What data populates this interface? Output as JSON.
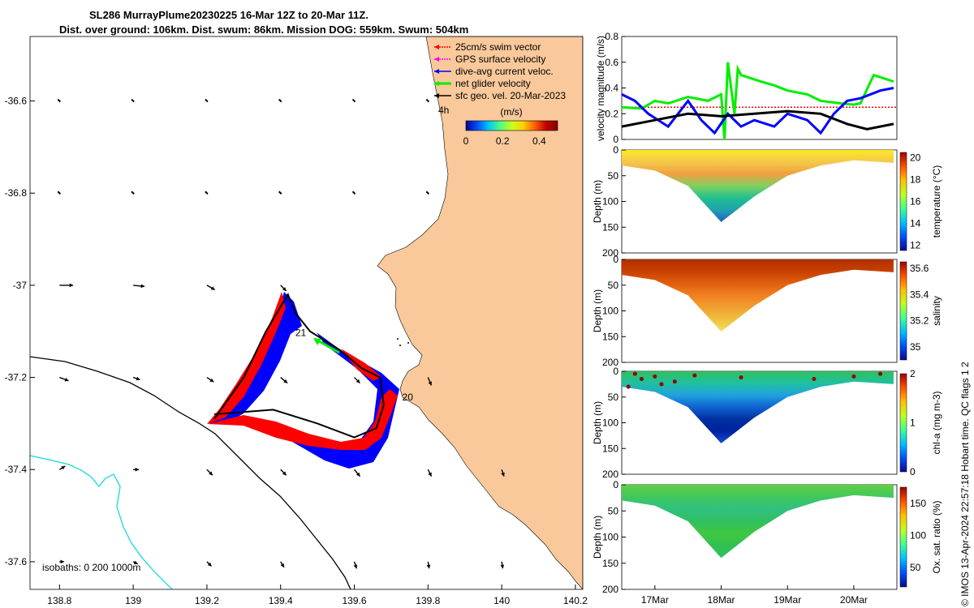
{
  "title": {
    "line1": "SL286 MurrayPlume20230225 16-Mar 12Z to 20-Mar 11Z.",
    "line2": "Dist. over ground: 106km. Dist. swum: 86km. Mission DOG: 559km. Swum: 504km"
  },
  "colors": {
    "land": "#f9c99b",
    "swim": "#ff0000",
    "gps": "#ff00ff",
    "dive": "#0000ff",
    "net": "#00ee00",
    "geo": "#000000",
    "river": "#33dddd"
  },
  "chart_data": [
    {
      "type": "map",
      "xticks": [
        "138.8",
        "139",
        "139.2",
        "139.4",
        "139.6",
        "139.8",
        "140",
        "140.2"
      ],
      "yticks": [
        "-36.6",
        "-36.8",
        "-37",
        "-37.2",
        "-37.4",
        "-37.6"
      ],
      "xlim": [
        138.72,
        140.22
      ],
      "ylim": [
        -37.66,
        -36.46
      ],
      "legend": [
        {
          "key": "swim",
          "label": "25cm/s swim vector"
        },
        {
          "key": "gps",
          "label": "GPS surface velocity"
        },
        {
          "key": "dive",
          "label": "dive-avg current veloc."
        },
        {
          "key": "net",
          "label": "net glider velocity"
        },
        {
          "key": "geo",
          "label": "sfc geo. vel. 20-Mar-2023"
        }
      ],
      "legend_extra": "4h",
      "colorbar": {
        "label": "(m/s)",
        "ticks": [
          "0",
          "0.2",
          "0.4"
        ],
        "range": [
          0,
          0.5
        ]
      },
      "annotations": [
        {
          "text": "21",
          "lon": 139.44,
          "lat": -37.11
        },
        {
          "text": "20",
          "lon": 139.73,
          "lat": -37.25
        }
      ],
      "isobath_label": "isobaths: 0   200  1000m",
      "track": [
        [
          139.22,
          -37.29
        ],
        [
          139.3,
          -37.2
        ],
        [
          139.36,
          -37.1
        ],
        [
          139.42,
          -37.02
        ],
        [
          139.44,
          -37.06
        ],
        [
          139.48,
          -37.1
        ],
        [
          139.56,
          -37.14
        ],
        [
          139.62,
          -37.18
        ],
        [
          139.67,
          -37.2
        ],
        [
          139.68,
          -37.26
        ],
        [
          139.66,
          -37.31
        ],
        [
          139.6,
          -37.33
        ],
        [
          139.5,
          -37.3
        ],
        [
          139.38,
          -37.27
        ],
        [
          139.22,
          -37.28
        ]
      ],
      "current_vectors": [
        {
          "lon": 138.8,
          "lat": -37.0,
          "u": 0.12,
          "v": 0.0
        },
        {
          "lon": 139.0,
          "lat": -37.0,
          "u": 0.1,
          "v": -0.01
        },
        {
          "lon": 139.2,
          "lat": -37.0,
          "u": 0.07,
          "v": -0.04
        },
        {
          "lon": 139.4,
          "lat": -37.0,
          "u": 0.05,
          "v": -0.05
        },
        {
          "lon": 138.8,
          "lat": -37.2,
          "u": 0.08,
          "v": -0.03
        },
        {
          "lon": 139.0,
          "lat": -37.2,
          "u": 0.06,
          "v": -0.02
        },
        {
          "lon": 139.2,
          "lat": -37.2,
          "u": 0.06,
          "v": -0.04
        },
        {
          "lon": 139.4,
          "lat": -37.2,
          "u": 0.06,
          "v": -0.05
        },
        {
          "lon": 139.6,
          "lat": -37.2,
          "u": 0.05,
          "v": -0.05
        },
        {
          "lon": 139.8,
          "lat": -37.2,
          "u": 0.03,
          "v": -0.07
        },
        {
          "lon": 138.8,
          "lat": -37.4,
          "u": 0.05,
          "v": 0.03
        },
        {
          "lon": 139.0,
          "lat": -37.4,
          "u": 0.05,
          "v": 0.0
        },
        {
          "lon": 139.2,
          "lat": -37.4,
          "u": 0.05,
          "v": -0.05
        },
        {
          "lon": 139.4,
          "lat": -37.4,
          "u": 0.05,
          "v": -0.05
        },
        {
          "lon": 139.6,
          "lat": -37.4,
          "u": 0.05,
          "v": -0.06
        },
        {
          "lon": 139.8,
          "lat": -37.4,
          "u": 0.03,
          "v": -0.06
        },
        {
          "lon": 140.0,
          "lat": -37.4,
          "u": 0.02,
          "v": -0.06
        },
        {
          "lon": 138.8,
          "lat": -37.6,
          "u": 0.04,
          "v": 0.0
        },
        {
          "lon": 139.0,
          "lat": -37.6,
          "u": 0.04,
          "v": -0.02
        },
        {
          "lon": 139.2,
          "lat": -37.6,
          "u": 0.04,
          "v": -0.04
        },
        {
          "lon": 139.4,
          "lat": -37.6,
          "u": 0.03,
          "v": -0.05
        },
        {
          "lon": 139.6,
          "lat": -37.6,
          "u": 0.02,
          "v": -0.06
        },
        {
          "lon": 139.8,
          "lat": -37.6,
          "u": 0.01,
          "v": -0.06
        },
        {
          "lon": 140.0,
          "lat": -37.6,
          "u": 0.01,
          "v": -0.06
        }
      ]
    },
    {
      "type": "line",
      "ylabel": "velocity magnitude (m/s)",
      "yticks": [
        "0",
        "0.2",
        "0.4",
        "0.6",
        "0.8"
      ],
      "ylim": [
        0,
        0.8
      ],
      "xlim": [
        16.5,
        20.65
      ],
      "series": [
        {
          "name": "swim",
          "color": "#ff0000",
          "x": [
            16.5,
            20.65
          ],
          "y": [
            0.25,
            0.25
          ]
        },
        {
          "name": "net",
          "color": "#00ee00",
          "x": [
            16.5,
            16.8,
            17.0,
            17.2,
            17.5,
            17.8,
            18.0,
            18.05,
            18.1,
            18.2,
            18.25,
            18.3,
            18.6,
            18.8,
            19.0,
            19.3,
            19.5,
            19.8,
            20.0,
            20.1,
            20.3,
            20.6
          ],
          "y": [
            0.25,
            0.24,
            0.3,
            0.28,
            0.33,
            0.3,
            0.35,
            0.0,
            0.6,
            0.2,
            0.55,
            0.5,
            0.45,
            0.42,
            0.38,
            0.35,
            0.3,
            0.28,
            0.27,
            0.28,
            0.5,
            0.45
          ]
        },
        {
          "name": "dive",
          "color": "#0000ff",
          "x": [
            16.5,
            16.7,
            16.9,
            17.2,
            17.5,
            17.7,
            17.9,
            18.1,
            18.3,
            18.5,
            18.8,
            19.0,
            19.3,
            19.5,
            19.7,
            19.9,
            20.1,
            20.4,
            20.6
          ],
          "y": [
            0.35,
            0.3,
            0.2,
            0.1,
            0.3,
            0.15,
            0.05,
            0.2,
            0.1,
            0.15,
            0.1,
            0.2,
            0.15,
            0.05,
            0.2,
            0.3,
            0.32,
            0.38,
            0.4
          ]
        },
        {
          "name": "geo",
          "color": "#000000",
          "x": [
            16.5,
            17.0,
            17.5,
            18.0,
            18.5,
            19.0,
            19.5,
            19.9,
            20.2,
            20.6
          ],
          "y": [
            0.1,
            0.15,
            0.2,
            0.18,
            0.2,
            0.22,
            0.2,
            0.12,
            0.08,
            0.12
          ]
        }
      ]
    },
    {
      "type": "heatmap",
      "ylabel": "Depth (m)",
      "cbar_label": "temperature (°C)",
      "yticks": [
        "0",
        "50",
        "100",
        "150",
        "200"
      ],
      "ylim": [
        200,
        0
      ],
      "cbar_ticks": [
        "12",
        "14",
        "16",
        "18",
        "20"
      ],
      "clim": [
        11.5,
        20.5
      ],
      "depth_profile": [
        [
          16.5,
          30
        ],
        [
          17.0,
          40
        ],
        [
          17.5,
          70
        ],
        [
          18.0,
          140
        ],
        [
          18.5,
          90
        ],
        [
          19.0,
          50
        ],
        [
          19.5,
          30
        ],
        [
          20.0,
          20
        ],
        [
          20.6,
          25
        ]
      ]
    },
    {
      "type": "heatmap",
      "ylabel": "Depth (m)",
      "cbar_label": "salinity",
      "yticks": [
        "0",
        "50",
        "100",
        "150",
        "200"
      ],
      "ylim": [
        200,
        0
      ],
      "cbar_ticks": [
        "35",
        "35.2",
        "35.4",
        "35.6"
      ],
      "clim": [
        34.9,
        35.65
      ],
      "depth_profile": [
        [
          16.5,
          30
        ],
        [
          17.0,
          40
        ],
        [
          17.5,
          70
        ],
        [
          18.0,
          140
        ],
        [
          18.5,
          90
        ],
        [
          19.0,
          50
        ],
        [
          19.5,
          30
        ],
        [
          20.0,
          20
        ],
        [
          20.6,
          25
        ]
      ]
    },
    {
      "type": "heatmap",
      "ylabel": "Depth (m)",
      "cbar_label": "chl-a (mg m-3)",
      "yticks": [
        "0",
        "50",
        "100",
        "150",
        "200"
      ],
      "ylim": [
        200,
        0
      ],
      "cbar_ticks": [
        "0",
        "1",
        "2"
      ],
      "clim": [
        0,
        2
      ],
      "depth_profile": [
        [
          16.5,
          30
        ],
        [
          17.0,
          40
        ],
        [
          17.5,
          70
        ],
        [
          18.0,
          140
        ],
        [
          18.5,
          90
        ],
        [
          19.0,
          50
        ],
        [
          19.5,
          30
        ],
        [
          20.0,
          20
        ],
        [
          20.6,
          25
        ]
      ]
    },
    {
      "type": "heatmap",
      "ylabel": "Depth (m)",
      "cbar_label": "Ox. sat. ratio (%)",
      "yticks": [
        "0",
        "50",
        "100",
        "150",
        "200"
      ],
      "ylim": [
        200,
        0
      ],
      "cbar_ticks": [
        "50",
        "100",
        "150"
      ],
      "clim": [
        20,
        175
      ],
      "xticks": [
        "17Mar",
        "18Mar",
        "19Mar",
        "20Mar"
      ],
      "xtick_vals": [
        17,
        18,
        19,
        20
      ],
      "depth_profile": [
        [
          16.5,
          30
        ],
        [
          17.0,
          40
        ],
        [
          17.5,
          70
        ],
        [
          18.0,
          140
        ],
        [
          18.5,
          90
        ],
        [
          19.0,
          50
        ],
        [
          19.5,
          30
        ],
        [
          20.0,
          20
        ],
        [
          20.6,
          25
        ]
      ]
    }
  ],
  "side_note": "© IMOS 13-Apr-2024 22:57:18 Hobart time. QC flags 1  2"
}
